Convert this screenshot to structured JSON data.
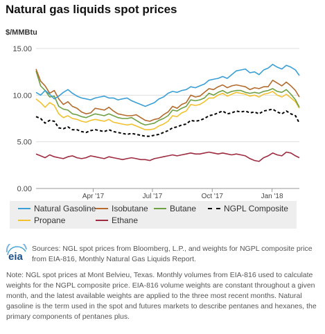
{
  "title": "Natural gas liquids spot prices",
  "sources": "Sources: NGL spot prices from Bloomberg, L.P., and weights for NGPL composite price from EIA-816, Monthly Natural Gas Liquids Report.",
  "note": "Note: NGL spot prices at Mont Belvieu, Texas. Monthly volumes from EIA-816 used to calculate weights for the NGPL composite price. EIA-816 volume weights are constant throughout a given month, and the latest available weights are applied to the three most recent months. Natural gasoline is the term used in the spot and futures markets to describe pentanes and hexanes, the primary components of pentanes plus.",
  "logo_text": "eia",
  "colors": {
    "natural_gasoline": "#3a9fd6",
    "isobutane": "#b36a2c",
    "butane": "#6da043",
    "ngpl_composite": "#000000",
    "propane": "#f2c12e",
    "ethane": "#9e2a3f",
    "gridline": "#dddddd"
  },
  "chart_data": {
    "type": "line",
    "ylabel": "$/MMBtu",
    "ylim": [
      0,
      15
    ],
    "xlim": [
      "2017-01-03",
      "2018-02-12"
    ],
    "grid": true,
    "legend_position": "bottom",
    "yticks": [
      "0.00",
      "5.00",
      "10.00",
      "15.00"
    ],
    "xticks": [
      {
        "date": "2017-04-01",
        "label": "Apr '17"
      },
      {
        "date": "2017-07-01",
        "label": "Jul '17"
      },
      {
        "date": "2017-10-01",
        "label": "Oct '17"
      },
      {
        "date": "2018-01-01",
        "label": "Jan '18"
      }
    ],
    "dates": [
      "2017-01-03",
      "2017-01-10",
      "2017-01-17",
      "2017-01-24",
      "2017-01-31",
      "2017-02-07",
      "2017-02-14",
      "2017-02-21",
      "2017-02-28",
      "2017-03-07",
      "2017-03-14",
      "2017-03-21",
      "2017-03-28",
      "2017-04-04",
      "2017-04-11",
      "2017-04-18",
      "2017-04-25",
      "2017-05-02",
      "2017-05-09",
      "2017-05-16",
      "2017-05-23",
      "2017-05-30",
      "2017-06-06",
      "2017-06-13",
      "2017-06-20",
      "2017-06-27",
      "2017-07-04",
      "2017-07-11",
      "2017-07-18",
      "2017-07-25",
      "2017-08-01",
      "2017-08-08",
      "2017-08-15",
      "2017-08-22",
      "2017-08-29",
      "2017-09-05",
      "2017-09-12",
      "2017-09-19",
      "2017-09-26",
      "2017-10-03",
      "2017-10-10",
      "2017-10-17",
      "2017-10-24",
      "2017-10-31",
      "2017-11-07",
      "2017-11-14",
      "2017-11-21",
      "2017-11-28",
      "2017-12-05",
      "2017-12-12",
      "2017-12-19",
      "2017-12-26",
      "2018-01-02",
      "2018-01-09",
      "2018-01-16",
      "2018-01-23",
      "2018-01-30",
      "2018-02-06",
      "2018-02-12"
    ],
    "series": [
      {
        "name": "Natural Gasoline",
        "color_key": "natural_gasoline",
        "dash": false,
        "values": [
          10.3,
          10.0,
          10.5,
          10.1,
          9.6,
          9.9,
          10.3,
          10.6,
          10.2,
          9.9,
          9.7,
          9.6,
          9.5,
          9.7,
          9.8,
          9.9,
          9.7,
          9.7,
          9.5,
          9.6,
          9.7,
          9.4,
          9.2,
          9.0,
          8.8,
          9.0,
          9.2,
          9.6,
          9.8,
          10.2,
          10.4,
          10.3,
          10.5,
          10.6,
          10.9,
          10.8,
          11.0,
          11.2,
          11.6,
          11.7,
          11.8,
          12.0,
          11.8,
          12.2,
          12.6,
          12.7,
          12.8,
          12.4,
          12.5,
          12.2,
          12.7,
          12.9,
          13.3,
          13.0,
          12.8,
          13.2,
          13.0,
          12.7,
          12.1
        ]
      },
      {
        "name": "Isobutane",
        "color_key": "isobutane",
        "dash": false,
        "values": [
          12.8,
          11.5,
          11.0,
          10.2,
          10.5,
          9.6,
          9.0,
          9.3,
          8.8,
          8.6,
          8.2,
          8.0,
          8.1,
          8.6,
          8.5,
          8.4,
          8.7,
          8.3,
          8.0,
          7.9,
          7.8,
          7.8,
          7.9,
          7.6,
          7.3,
          7.2,
          7.4,
          7.5,
          7.9,
          8.2,
          8.8,
          8.6,
          9.0,
          9.2,
          10.0,
          9.8,
          9.9,
          10.3,
          10.7,
          10.6,
          10.9,
          11.1,
          10.8,
          11.0,
          11.1,
          11.0,
          10.9,
          10.6,
          10.8,
          10.7,
          10.9,
          10.9,
          11.6,
          11.3,
          11.0,
          11.4,
          11.0,
          10.5,
          9.8
        ]
      },
      {
        "name": "Butane",
        "color_key": "butane",
        "dash": false,
        "values": [
          12.6,
          11.0,
          10.5,
          9.8,
          9.9,
          8.8,
          8.5,
          8.4,
          8.0,
          7.9,
          7.7,
          7.6,
          7.8,
          8.0,
          7.9,
          7.8,
          8.0,
          7.8,
          7.6,
          7.5,
          7.5,
          7.6,
          7.3,
          7.0,
          6.8,
          6.9,
          7.0,
          7.3,
          7.5,
          7.8,
          8.4,
          8.3,
          8.6,
          8.8,
          9.5,
          9.4,
          9.5,
          9.7,
          10.2,
          10.0,
          10.3,
          10.5,
          10.2,
          10.4,
          10.5,
          10.5,
          10.3,
          10.2,
          10.3,
          10.2,
          10.4,
          10.5,
          10.7,
          10.4,
          10.3,
          10.6,
          10.1,
          9.5,
          8.7
        ]
      },
      {
        "name": "NGPL Composite",
        "color_key": "ngpl_composite",
        "dash": true,
        "values": [
          7.7,
          7.5,
          7.0,
          7.3,
          7.2,
          6.5,
          6.4,
          6.6,
          6.3,
          6.3,
          6.1,
          6.0,
          6.2,
          6.3,
          6.2,
          6.1,
          6.3,
          6.1,
          6.0,
          5.9,
          5.8,
          5.9,
          5.8,
          5.7,
          5.6,
          5.6,
          5.7,
          5.8,
          6.0,
          6.2,
          6.5,
          6.6,
          6.8,
          6.9,
          7.3,
          7.2,
          7.3,
          7.5,
          7.8,
          7.9,
          8.1,
          8.3,
          8.0,
          8.1,
          8.3,
          8.2,
          8.3,
          8.1,
          8.2,
          8.0,
          8.3,
          8.4,
          8.5,
          8.2,
          8.0,
          8.3,
          8.0,
          7.8,
          7.0
        ]
      },
      {
        "name": "Propane",
        "color_key": "propane",
        "dash": false,
        "values": [
          9.6,
          9.2,
          8.7,
          9.2,
          8.9,
          8.0,
          7.6,
          7.8,
          7.5,
          7.4,
          7.2,
          7.1,
          7.3,
          7.4,
          7.3,
          7.2,
          7.4,
          7.1,
          7.0,
          6.9,
          6.8,
          6.9,
          6.7,
          6.5,
          6.3,
          6.3,
          6.4,
          6.7,
          6.9,
          7.2,
          7.8,
          7.7,
          8.1,
          8.3,
          9.0,
          8.9,
          9.0,
          9.3,
          9.7,
          9.7,
          10.0,
          10.2,
          9.9,
          10.1,
          10.3,
          10.2,
          10.1,
          9.9,
          10.0,
          9.8,
          10.1,
          10.2,
          10.4,
          10.0,
          9.8,
          10.1,
          9.7,
          9.3,
          8.6
        ]
      },
      {
        "name": "Ethane",
        "color_key": "ethane",
        "dash": false,
        "values": [
          3.7,
          3.5,
          3.3,
          3.6,
          3.4,
          3.3,
          3.2,
          3.4,
          3.5,
          3.3,
          3.2,
          3.3,
          3.5,
          3.4,
          3.3,
          3.2,
          3.4,
          3.3,
          3.2,
          3.1,
          3.2,
          3.3,
          3.2,
          3.1,
          3.1,
          3.0,
          3.2,
          3.3,
          3.4,
          3.5,
          3.6,
          3.5,
          3.6,
          3.7,
          3.8,
          3.7,
          3.7,
          3.8,
          3.9,
          3.8,
          3.7,
          3.8,
          3.7,
          3.6,
          3.7,
          3.6,
          3.5,
          3.2,
          3.0,
          2.9,
          3.3,
          3.5,
          3.8,
          3.6,
          3.5,
          3.9,
          3.8,
          3.5,
          3.3
        ]
      }
    ]
  },
  "legend": {
    "rows": [
      [
        "natural_gasoline",
        "isobutane",
        "butane",
        "ngpl_composite"
      ],
      [
        "propane",
        "ethane"
      ]
    ]
  }
}
